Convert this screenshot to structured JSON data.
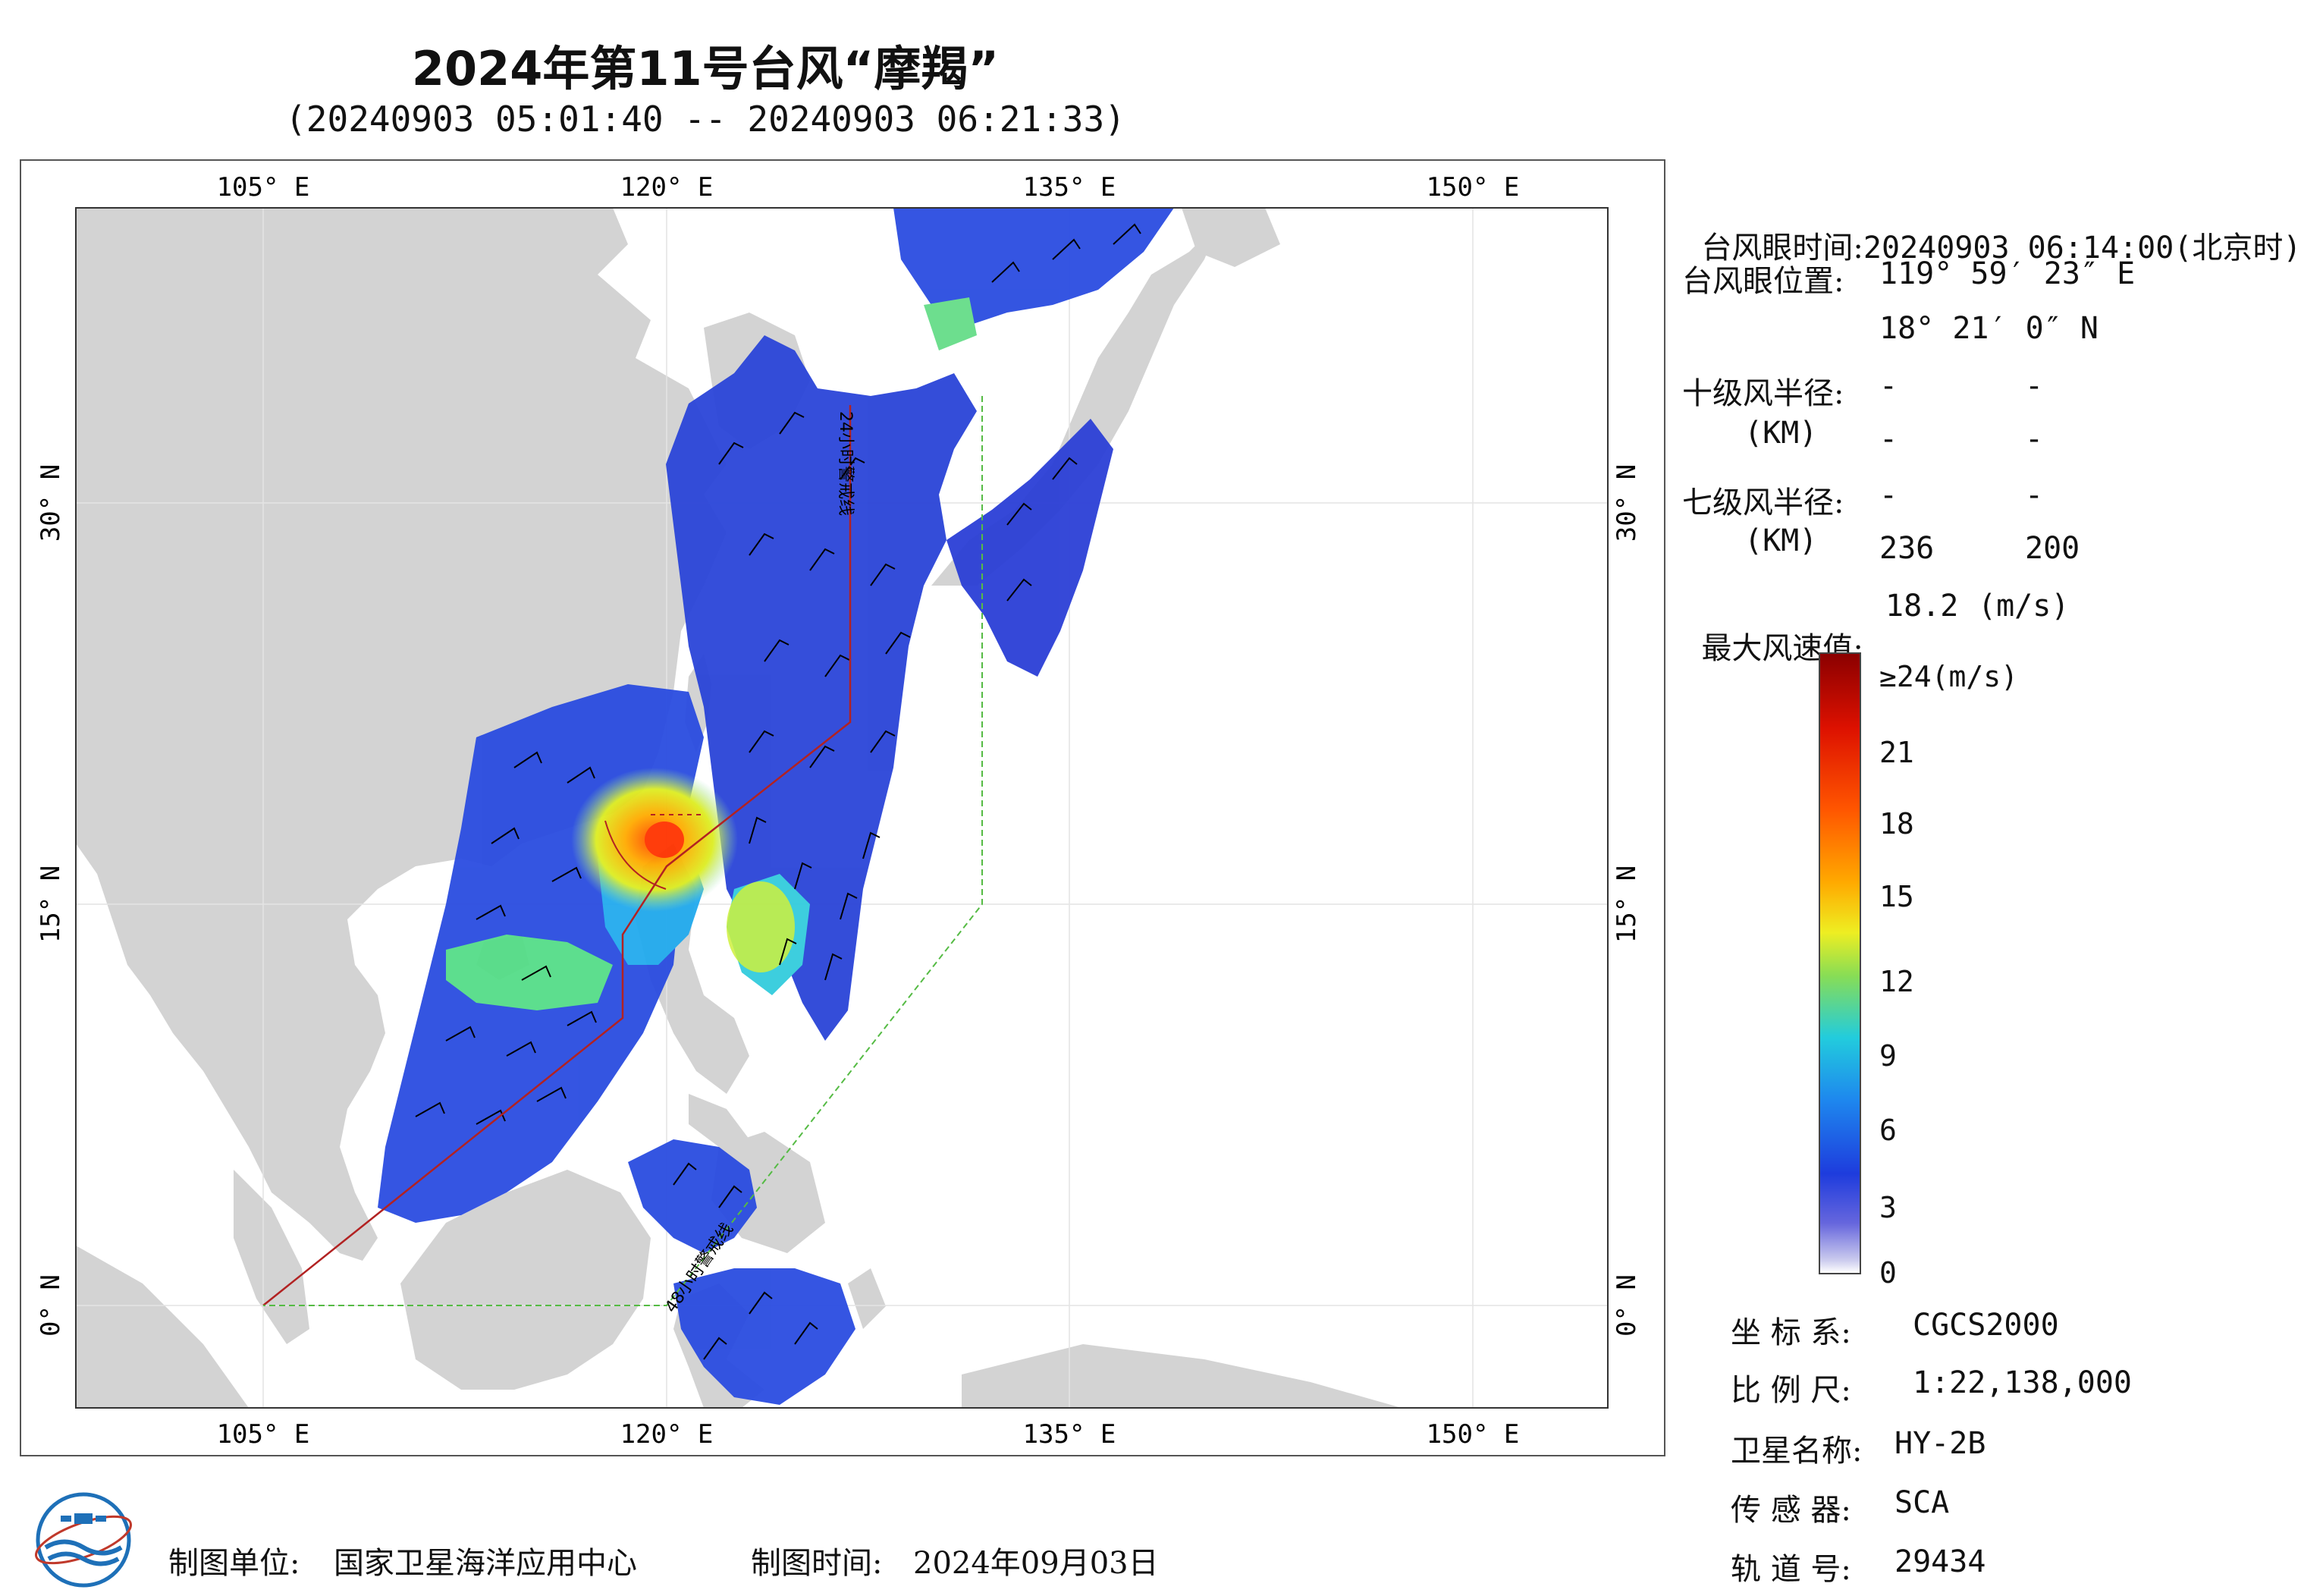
{
  "header": {
    "title": "2024年第11号台风“摩羯”",
    "subtitle": "(20240903 05:01:40 -- 20240903 06:21:33)"
  },
  "map": {
    "lon_labels": [
      "105° E",
      "120° E",
      "135° E",
      "150° E"
    ],
    "lat_labels": [
      "30° N",
      "15° N",
      "0° N"
    ],
    "lon_range": [
      98,
      155
    ],
    "lat_range": [
      -4,
      41
    ],
    "warning_line_24h_label": "24小时警戒线",
    "warning_line_48h_label": "48小时警戒线",
    "colors": {
      "land": "#d3d3d3",
      "ocean": "#ffffff",
      "warning_24h": "#b22222",
      "warning_48h": "#55bb44"
    }
  },
  "info": {
    "eye_time_label": "台风眼时间:",
    "eye_time_value": "20240903 06:14:00(北京时)",
    "eye_pos_label": "台风眼位置:",
    "eye_lon": "119° 59′ 23″ E",
    "eye_lat": "18° 21′ 0″ N",
    "r10_label": "十级风半径:",
    "r10_unit": "(KM)",
    "r10_values": [
      "-",
      "-",
      "-",
      "-"
    ],
    "r7_label": "七级风半径:",
    "r7_unit": "(KM)",
    "r7_values": [
      "-",
      "-",
      "236",
      "200"
    ],
    "max_wind_label": "最大风速值:",
    "max_wind_value": "18.2",
    "max_wind_unit": "(m/s)"
  },
  "colorbar": {
    "labels": [
      "≥24(m/s)",
      "21",
      "18",
      "15",
      "12",
      "9",
      "6",
      "3",
      "0"
    ],
    "min": 0,
    "max": 24
  },
  "meta": {
    "crs_label": "坐 标 系:",
    "crs_value": "CGCS2000",
    "scale_label": "比 例 尺:",
    "scale_value": "1:22,138,000",
    "satellite_label": "卫星名称:",
    "satellite_value": "HY-2B",
    "sensor_label": "传 感 器:",
    "sensor_value": "SCA",
    "orbit_label": "轨 道 号:",
    "orbit_value": "29434"
  },
  "footer": {
    "unit_label": "制图单位:",
    "unit_value": "国家卫星海洋应用中心",
    "date_label": "制图时间:",
    "date_value": "2024年09月03日"
  }
}
